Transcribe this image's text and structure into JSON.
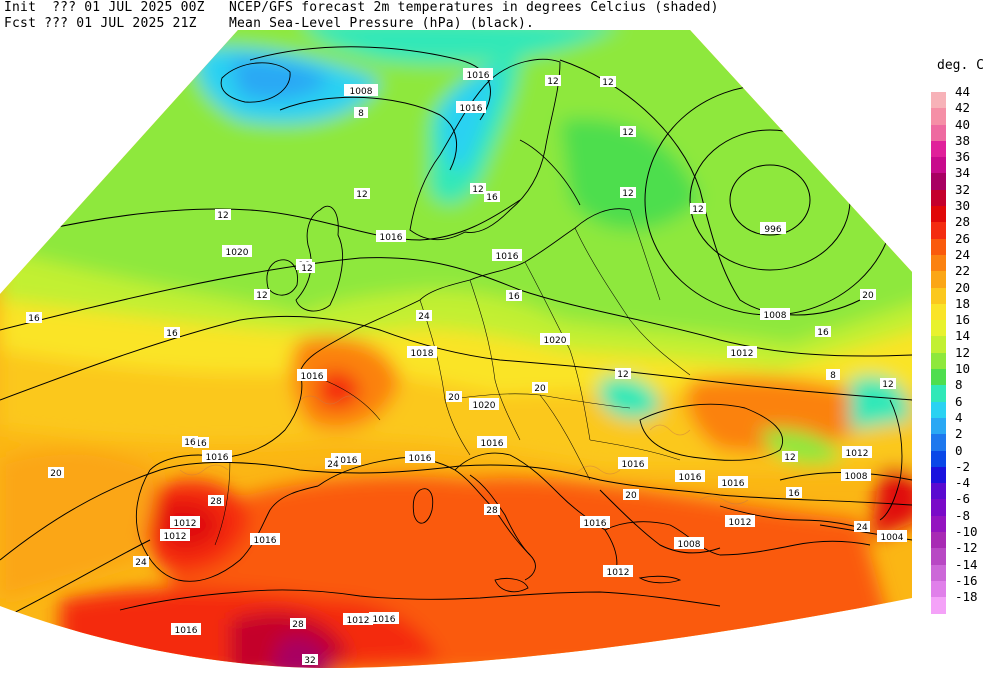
{
  "header": {
    "line1_left": "Init  ??? 01 JUL 2025 00Z",
    "line2_left": "Fcst ??? 01 JUL 2025 21Z",
    "line1_right": "NCEP/GFS forecast 2m temperatures in degrees Celcius (shaded)",
    "line2_right": "Mean Sea-Level Pressure (hPa) (black)."
  },
  "legend": {
    "unit": "deg. C",
    "levels": [
      {
        "label": "44",
        "color": "#f7b2b8"
      },
      {
        "label": "42",
        "color": "#f58fa6"
      },
      {
        "label": "40",
        "color": "#ee6aa0"
      },
      {
        "label": "38",
        "color": "#e0209a"
      },
      {
        "label": "36",
        "color": "#c80a8c"
      },
      {
        "label": "34",
        "color": "#a80062"
      },
      {
        "label": "32",
        "color": "#c4002c"
      },
      {
        "label": "30",
        "color": "#e00808"
      },
      {
        "label": "28",
        "color": "#f42c10"
      },
      {
        "label": "26",
        "color": "#fa5a0c"
      },
      {
        "label": "24",
        "color": "#fb8210"
      },
      {
        "label": "22",
        "color": "#fba616"
      },
      {
        "label": "20",
        "color": "#fbc81e"
      },
      {
        "label": "18",
        "color": "#fae428"
      },
      {
        "label": "16",
        "color": "#e8f22e"
      },
      {
        "label": "14",
        "color": "#c2f032"
      },
      {
        "label": "12",
        "color": "#8ee83c"
      },
      {
        "label": "10",
        "color": "#4ede4e"
      },
      {
        "label": "8",
        "color": "#30e8b8"
      },
      {
        "label": "6",
        "color": "#2ad2f2"
      },
      {
        "label": "4",
        "color": "#2aa8f4"
      },
      {
        "label": "2",
        "color": "#1e78ee"
      },
      {
        "label": "0",
        "color": "#0a48e8"
      },
      {
        "label": "-2",
        "color": "#1a12de"
      },
      {
        "label": "-4",
        "color": "#5a0ad0"
      },
      {
        "label": "-6",
        "color": "#7a0ac8"
      },
      {
        "label": "-8",
        "color": "#9414c0"
      },
      {
        "label": "-10",
        "color": "#a82ab4"
      },
      {
        "label": "-12",
        "color": "#b848c4"
      },
      {
        "label": "-14",
        "color": "#cc68d8"
      },
      {
        "label": "-16",
        "color": "#e080ea"
      },
      {
        "label": "-18",
        "color": "#f4a2f8"
      }
    ]
  },
  "map": {
    "isobar_labels": [
      {
        "text": "1008"
      },
      {
        "text": "1016"
      },
      {
        "text": "1020"
      },
      {
        "text": "1016"
      },
      {
        "text": "1016"
      },
      {
        "text": "996"
      },
      {
        "text": "1008"
      },
      {
        "text": "1012"
      },
      {
        "text": "1018"
      },
      {
        "text": "1020"
      },
      {
        "text": "1016"
      },
      {
        "text": "1020"
      },
      {
        "text": "1016"
      },
      {
        "text": "1016"
      },
      {
        "text": "1016"
      },
      {
        "text": "1016"
      },
      {
        "text": "1016"
      },
      {
        "text": "1012"
      },
      {
        "text": "1012"
      },
      {
        "text": "1016"
      },
      {
        "text": "1016"
      },
      {
        "text": "1016"
      },
      {
        "text": "1016"
      },
      {
        "text": "1012"
      },
      {
        "text": "1008"
      },
      {
        "text": "1004"
      },
      {
        "text": "1008"
      },
      {
        "text": "1012"
      },
      {
        "text": "1016"
      },
      {
        "text": "1012"
      },
      {
        "text": "1012"
      },
      {
        "text": "1016"
      },
      {
        "text": "1016"
      }
    ],
    "temp_labels": [
      {
        "text": "8"
      },
      {
        "text": "12"
      },
      {
        "text": "12"
      },
      {
        "text": "12"
      },
      {
        "text": "12"
      },
      {
        "text": "16"
      },
      {
        "text": "16"
      },
      {
        "text": "12"
      },
      {
        "text": "16"
      },
      {
        "text": "16"
      },
      {
        "text": "24"
      },
      {
        "text": "20"
      },
      {
        "text": "16"
      },
      {
        "text": "20"
      },
      {
        "text": "24"
      },
      {
        "text": "28"
      },
      {
        "text": "24"
      },
      {
        "text": "28"
      },
      {
        "text": "28"
      },
      {
        "text": "32"
      },
      {
        "text": "12"
      },
      {
        "text": "16"
      },
      {
        "text": "12"
      },
      {
        "text": "20"
      },
      {
        "text": "16"
      },
      {
        "text": "20"
      },
      {
        "text": "12"
      },
      {
        "text": "16"
      },
      {
        "text": "20"
      },
      {
        "text": "24"
      },
      {
        "text": "12"
      },
      {
        "text": "12"
      },
      {
        "text": "12"
      },
      {
        "text": "16"
      },
      {
        "text": "12"
      },
      {
        "text": "8"
      },
      {
        "text": "12"
      }
    ]
  }
}
